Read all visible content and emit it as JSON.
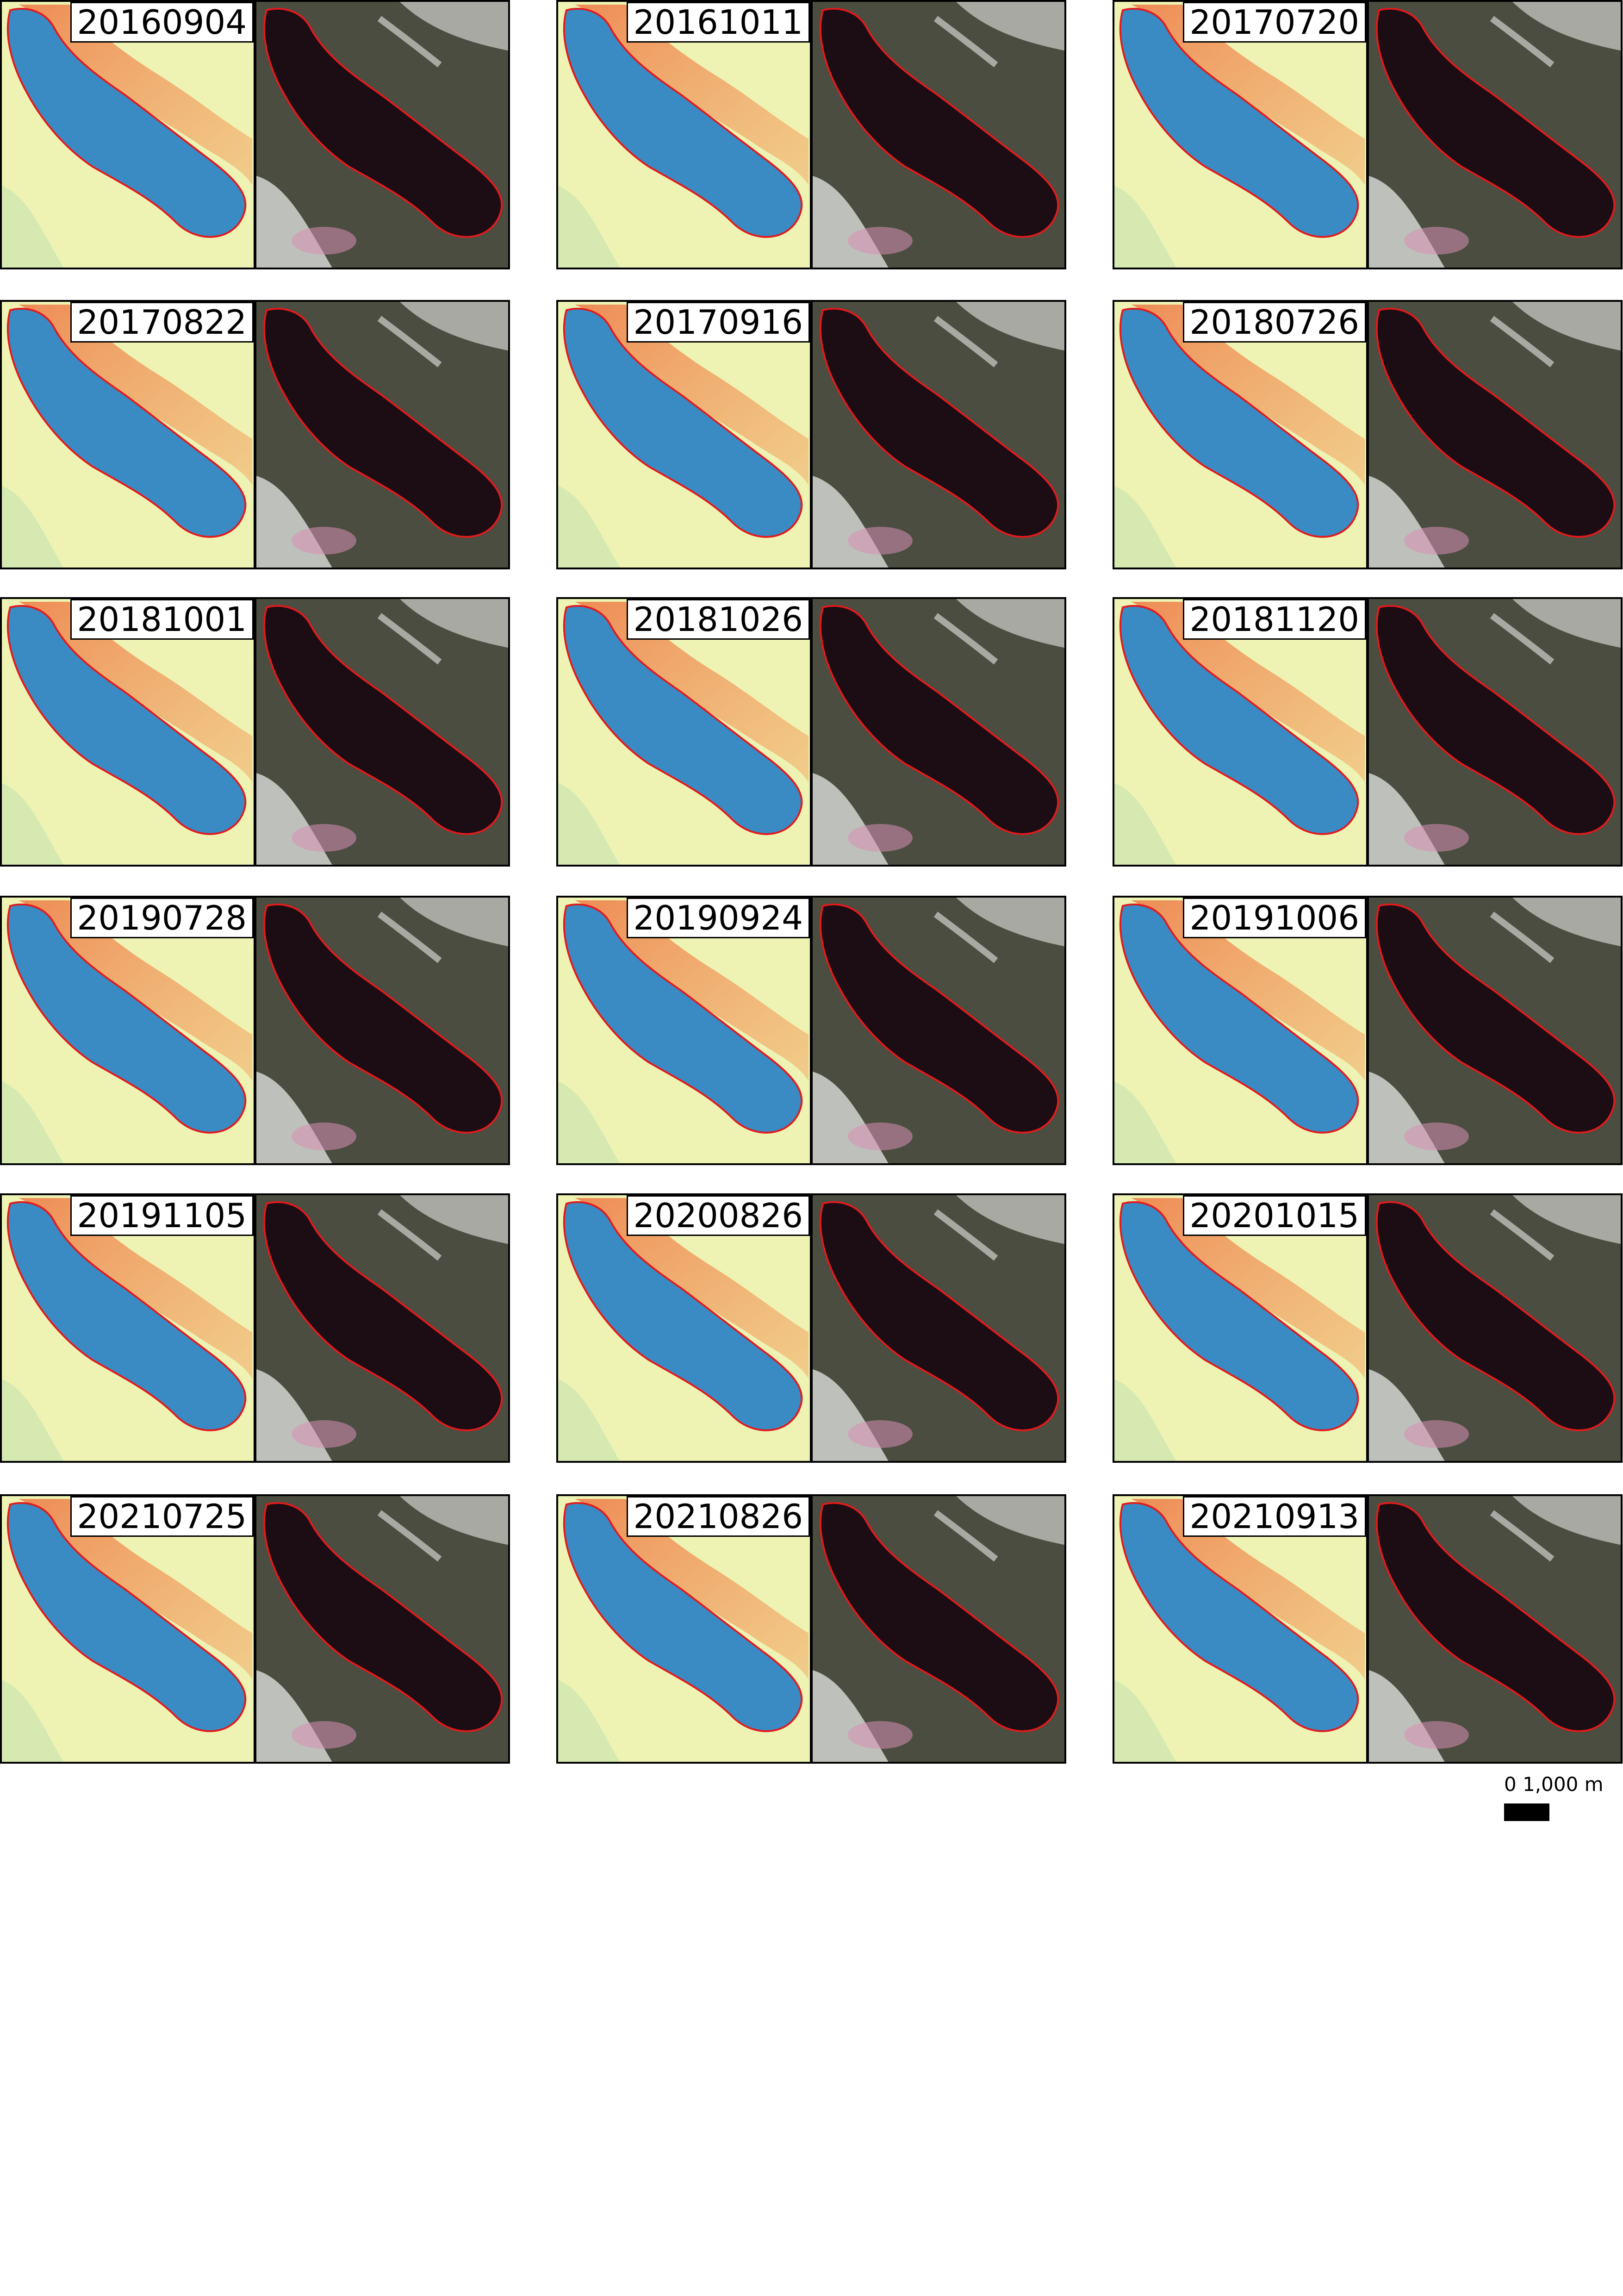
{
  "colors": {
    "index_background": "#eef3b4",
    "water_index": "#3a8ac4",
    "terrain_warm": "#f4a560",
    "terrain_hot": "#ee7a45",
    "lake_outline": "#e31a1c",
    "rgb_dark_water": "#1c0c14",
    "rgb_terrain": "#4a4d40",
    "snow": "#e6e8e4",
    "pink_snow": "#d78fb4"
  },
  "panels": [
    {
      "date": "20160904"
    },
    {
      "date": "20161011"
    },
    {
      "date": "20170720"
    },
    {
      "date": "20170822"
    },
    {
      "date": "20170916"
    },
    {
      "date": "20180726"
    },
    {
      "date": "20181001"
    },
    {
      "date": "20181026"
    },
    {
      "date": "20181120"
    },
    {
      "date": "20190728"
    },
    {
      "date": "20190924"
    },
    {
      "date": "20191006"
    },
    {
      "date": "20191105"
    },
    {
      "date": "20200826"
    },
    {
      "date": "20201015"
    },
    {
      "date": "20210725"
    },
    {
      "date": "20210826"
    },
    {
      "date": "20210913"
    }
  ],
  "scale_bar": {
    "label": "0 1,000 m"
  }
}
